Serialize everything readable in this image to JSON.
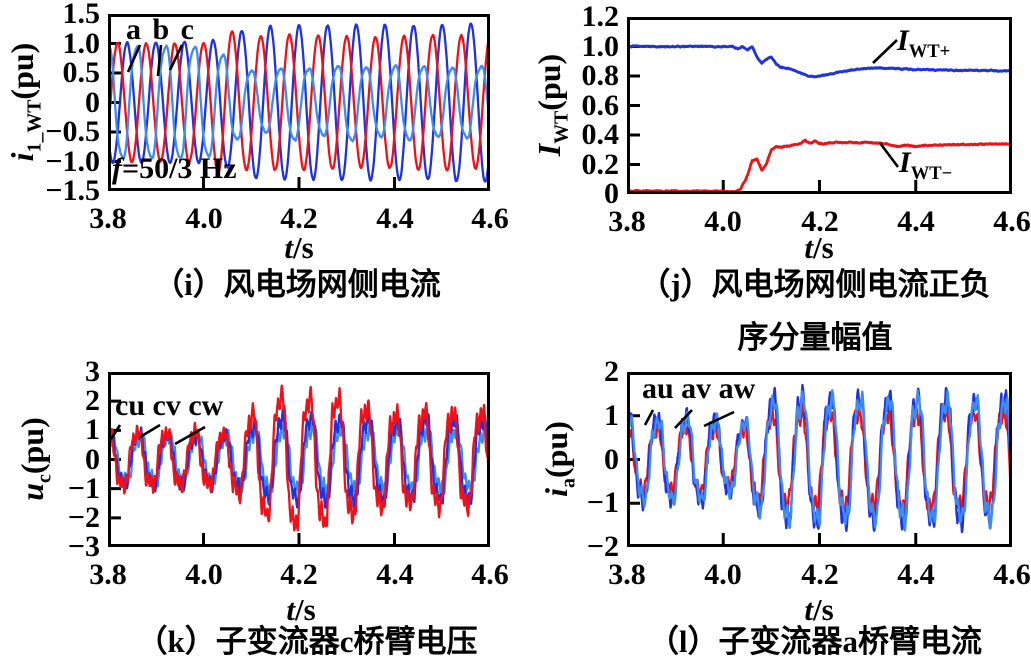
{
  "colors": {
    "red": "#f01018",
    "blue": "#1f32e0",
    "lightblue": "#3e8cf0",
    "axis": "#000000",
    "background": "#ffffff"
  },
  "chart_data": [
    {
      "id": "i",
      "type": "line",
      "caption": "（i）风电场网侧电流",
      "xlabel": {
        "var": "t",
        "rest": "/s"
      },
      "ylabel": {
        "var": "i",
        "sub": "1_WT",
        "unit": "(pu)"
      },
      "xlim": [
        3.8,
        4.6
      ],
      "ylim": [
        -1.5,
        1.5
      ],
      "xticks": [
        "3.8",
        "4.0",
        "4.2",
        "4.4",
        "4.6"
      ],
      "yticks": [
        "1.5",
        "1.0",
        "0.5",
        "0",
        "−0.5",
        "−1.0",
        "−1.5"
      ],
      "grid": false,
      "annotations": {
        "series_label": "a b c",
        "freq_label": {
          "var": "f",
          "rest": "=50/3 Hz"
        }
      },
      "leaders": [
        [
          32,
          31,
          20,
          58
        ],
        [
          53,
          31,
          50,
          62
        ],
        [
          74,
          31,
          62,
          56
        ]
      ],
      "series": [
        {
          "name": "a",
          "color": "blue",
          "kind": "wave",
          "freq_hz": 16.667,
          "phase_deg": -150,
          "h3": 0,
          "hf_amp": 0,
          "hf_freq": 0,
          "jitter": 0.015,
          "envelope": [
            [
              3.8,
              1.02
            ],
            [
              4.0,
              1.02
            ],
            [
              4.05,
              1.1
            ],
            [
              4.1,
              1.28
            ],
            [
              4.2,
              1.3
            ],
            [
              4.3,
              1.32
            ],
            [
              4.45,
              1.3
            ],
            [
              4.6,
              1.35
            ]
          ]
        },
        {
          "name": "b",
          "color": "red",
          "kind": "wave",
          "freq_hz": 16.667,
          "phase_deg": -30,
          "h3": 0,
          "hf_amp": 0,
          "hf_freq": 0,
          "jitter": 0.015,
          "envelope": [
            [
              3.8,
              1.0
            ],
            [
              4.0,
              1.0
            ],
            [
              4.04,
              1.25
            ],
            [
              4.1,
              1.12
            ],
            [
              4.2,
              1.15
            ],
            [
              4.35,
              1.1
            ],
            [
              4.5,
              1.15
            ],
            [
              4.6,
              1.1
            ]
          ]
        },
        {
          "name": "c",
          "color": "lightblue",
          "kind": "wave",
          "freq_hz": 16.667,
          "phase_deg": 90,
          "h3": 0.08,
          "hf_amp": 0,
          "hf_freq": 0,
          "jitter": 0.02,
          "envelope": [
            [
              3.8,
              1.0
            ],
            [
              4.0,
              1.0
            ],
            [
              4.04,
              0.85
            ],
            [
              4.08,
              0.6
            ],
            [
              4.14,
              0.52
            ],
            [
              4.18,
              0.68
            ],
            [
              4.24,
              0.55
            ],
            [
              4.3,
              0.7
            ],
            [
              4.36,
              0.58
            ],
            [
              4.42,
              0.68
            ],
            [
              4.5,
              0.6
            ],
            [
              4.6,
              0.65
            ]
          ]
        }
      ]
    },
    {
      "id": "j",
      "type": "line",
      "caption_line1": "（j）风电场网侧电流正负",
      "caption_line2": "序分量幅值",
      "xlabel": {
        "var": "t",
        "rest": "/s"
      },
      "ylabel": {
        "var": "I",
        "sub": "WT",
        "unit": "(pu)"
      },
      "xlim": [
        3.8,
        4.6
      ],
      "ylim": [
        0,
        1.2
      ],
      "xticks": [
        "3.8",
        "4.0",
        "4.2",
        "4.4",
        "4.6"
      ],
      "yticks": [
        "1.2",
        "1.0",
        "0.8",
        "0.6",
        "0.4",
        "0.2",
        "0"
      ],
      "grid": false,
      "annotations": {
        "pos_label": {
          "var": "I",
          "sub": "WT+"
        },
        "neg_label": {
          "var": "I",
          "sub": "WT−"
        }
      },
      "leaders": [
        [
          246,
          46,
          270,
          23
        ],
        [
          253,
          126,
          271,
          150
        ]
      ],
      "series": [
        {
          "name": "I_WT+",
          "color": "blue",
          "kind": "envelope",
          "jitter": 0.004,
          "envelope": [
            [
              3.8,
              1.0
            ],
            [
              4.0,
              1.0
            ],
            [
              4.02,
              1.0
            ],
            [
              4.03,
              0.985
            ],
            [
              4.04,
              1.0
            ],
            [
              4.05,
              0.975
            ],
            [
              4.06,
              1.0
            ],
            [
              4.07,
              0.93
            ],
            [
              4.08,
              0.885
            ],
            [
              4.09,
              0.915
            ],
            [
              4.1,
              0.935
            ],
            [
              4.11,
              0.88
            ],
            [
              4.12,
              0.86
            ],
            [
              4.14,
              0.845
            ],
            [
              4.16,
              0.82
            ],
            [
              4.18,
              0.795
            ],
            [
              4.2,
              0.8
            ],
            [
              4.24,
              0.825
            ],
            [
              4.28,
              0.845
            ],
            [
              4.32,
              0.855
            ],
            [
              4.36,
              0.85
            ],
            [
              4.4,
              0.845
            ],
            [
              4.45,
              0.84
            ],
            [
              4.5,
              0.838
            ],
            [
              4.55,
              0.836
            ],
            [
              4.6,
              0.835
            ]
          ]
        },
        {
          "name": "I_WT−",
          "color": "red",
          "kind": "envelope",
          "jitter": 0.004,
          "envelope": [
            [
              3.8,
              0.02
            ],
            [
              4.0,
              0.02
            ],
            [
              4.02,
              0.015
            ],
            [
              4.035,
              0.03
            ],
            [
              4.05,
              0.12
            ],
            [
              4.06,
              0.225
            ],
            [
              4.07,
              0.235
            ],
            [
              4.08,
              0.16
            ],
            [
              4.09,
              0.21
            ],
            [
              4.1,
              0.3
            ],
            [
              4.11,
              0.32
            ],
            [
              4.12,
              0.315
            ],
            [
              4.14,
              0.33
            ],
            [
              4.16,
              0.34
            ],
            [
              4.17,
              0.365
            ],
            [
              4.18,
              0.345
            ],
            [
              4.19,
              0.36
            ],
            [
              4.2,
              0.34
            ],
            [
              4.22,
              0.345
            ],
            [
              4.24,
              0.35
            ],
            [
              4.26,
              0.35
            ],
            [
              4.28,
              0.345
            ],
            [
              4.3,
              0.35
            ],
            [
              4.32,
              0.345
            ],
            [
              4.34,
              0.34
            ],
            [
              4.36,
              0.325
            ],
            [
              4.38,
              0.33
            ],
            [
              4.4,
              0.325
            ],
            [
              4.44,
              0.33
            ],
            [
              4.48,
              0.335
            ],
            [
              4.52,
              0.335
            ],
            [
              4.56,
              0.34
            ],
            [
              4.6,
              0.34
            ]
          ]
        }
      ]
    },
    {
      "id": "k",
      "type": "line",
      "caption": "（k）子变流器c桥臂电压",
      "xlabel": {
        "var": "t",
        "rest": "/s"
      },
      "ylabel": {
        "var": "u",
        "sub": "c",
        "unit": "(pu)"
      },
      "xlim": [
        3.8,
        4.6
      ],
      "ylim": [
        -3,
        3
      ],
      "xticks": [
        "3.8",
        "4.0",
        "4.2",
        "4.4",
        "4.6"
      ],
      "yticks": [
        "3",
        "2",
        "1",
        "0",
        "−1",
        "−2",
        "−3"
      ],
      "grid": false,
      "annotations": {
        "series_label": "cu cv cw"
      },
      "leaders": [
        [
          12,
          53,
          3,
          67
        ],
        [
          52,
          53,
          32,
          65
        ],
        [
          97,
          55,
          67,
          72
        ]
      ],
      "series": [
        {
          "name": "cw",
          "color": "lightblue",
          "kind": "wave",
          "freq_hz": 16.667,
          "phase_deg": 50,
          "h3": 0.15,
          "hf_amp": 0.22,
          "hf_freq": 125,
          "jitter": 0.1,
          "envelope": [
            [
              3.8,
              0.8
            ],
            [
              4.05,
              0.8
            ],
            [
              4.15,
              1.15
            ],
            [
              4.3,
              1.1
            ],
            [
              4.6,
              1.05
            ]
          ]
        },
        {
          "name": "cv",
          "color": "blue",
          "kind": "wave",
          "freq_hz": 16.667,
          "phase_deg": 70,
          "h3": 0.15,
          "hf_amp": 0.22,
          "hf_freq": 118,
          "jitter": 0.1,
          "envelope": [
            [
              3.8,
              0.9
            ],
            [
              4.05,
              0.9
            ],
            [
              4.15,
              1.5
            ],
            [
              4.3,
              1.45
            ],
            [
              4.6,
              1.4
            ]
          ]
        },
        {
          "name": "cu",
          "color": "red",
          "kind": "wave",
          "freq_hz": 16.667,
          "phase_deg": 90,
          "h3": 0.18,
          "hf_amp": 0.25,
          "hf_freq": 132,
          "jitter": 0.12,
          "envelope": [
            [
              3.8,
              0.95
            ],
            [
              4.05,
              0.95
            ],
            [
              4.12,
              1.9
            ],
            [
              4.18,
              2.45
            ],
            [
              4.22,
              2.2
            ],
            [
              4.27,
              2.35
            ],
            [
              4.32,
              1.9
            ],
            [
              4.4,
              1.65
            ],
            [
              4.5,
              1.7
            ],
            [
              4.6,
              1.75
            ]
          ]
        }
      ]
    },
    {
      "id": "l",
      "type": "line",
      "caption": "（l）子变流器a桥臂电流",
      "xlabel": {
        "var": "t",
        "rest": "/s"
      },
      "ylabel": {
        "var": "i",
        "sub": "a",
        "unit": "(pu)"
      },
      "xlim": [
        3.8,
        4.6
      ],
      "ylim": [
        -2,
        2
      ],
      "xticks": [
        "3.8",
        "4.0",
        "4.2",
        "4.4",
        "4.6"
      ],
      "yticks": [
        "2",
        "1",
        "0",
        "−1",
        "−2"
      ],
      "grid": false,
      "annotations": {
        "series_label": "au av aw"
      },
      "leaders": [
        [
          26,
          38,
          18,
          53
        ],
        [
          65,
          38,
          48,
          56
        ],
        [
          107,
          40,
          77,
          54
        ]
      ],
      "series": [
        {
          "name": "au",
          "color": "red",
          "kind": "wave",
          "freq_hz": 16.667,
          "phase_deg": 90,
          "h3": 0.12,
          "hf_amp": 0.18,
          "hf_freq": 110,
          "jitter": 0.08,
          "envelope": [
            [
              3.8,
              0.78
            ],
            [
              3.98,
              0.78
            ],
            [
              4.02,
              0.6
            ],
            [
              4.06,
              0.9
            ],
            [
              4.1,
              1.05
            ],
            [
              4.2,
              1.15
            ],
            [
              4.3,
              1.1
            ],
            [
              4.4,
              1.15
            ],
            [
              4.5,
              1.1
            ],
            [
              4.6,
              1.12
            ]
          ]
        },
        {
          "name": "av",
          "color": "blue",
          "kind": "wave",
          "freq_hz": 16.667,
          "phase_deg": 80,
          "h3": 0.12,
          "hf_amp": 0.2,
          "hf_freq": 104,
          "jitter": 0.08,
          "envelope": [
            [
              3.8,
              1.0
            ],
            [
              3.98,
              1.0
            ],
            [
              4.02,
              0.75
            ],
            [
              4.06,
              1.1
            ],
            [
              4.1,
              1.45
            ],
            [
              4.15,
              1.55
            ],
            [
              4.25,
              1.5
            ],
            [
              4.35,
              1.45
            ],
            [
              4.45,
              1.5
            ],
            [
              4.55,
              1.45
            ],
            [
              4.6,
              1.5
            ]
          ]
        },
        {
          "name": "aw",
          "color": "lightblue",
          "kind": "wave",
          "freq_hz": 16.667,
          "phase_deg": 70,
          "h3": 0.12,
          "hf_amp": 0.18,
          "hf_freq": 96,
          "jitter": 0.08,
          "envelope": [
            [
              3.8,
              0.95
            ],
            [
              3.98,
              0.95
            ],
            [
              4.02,
              0.7
            ],
            [
              4.06,
              1.05
            ],
            [
              4.1,
              1.4
            ],
            [
              4.2,
              1.45
            ],
            [
              4.3,
              1.4
            ],
            [
              4.4,
              1.45
            ],
            [
              4.5,
              1.4
            ],
            [
              4.6,
              1.42
            ]
          ]
        }
      ]
    }
  ]
}
